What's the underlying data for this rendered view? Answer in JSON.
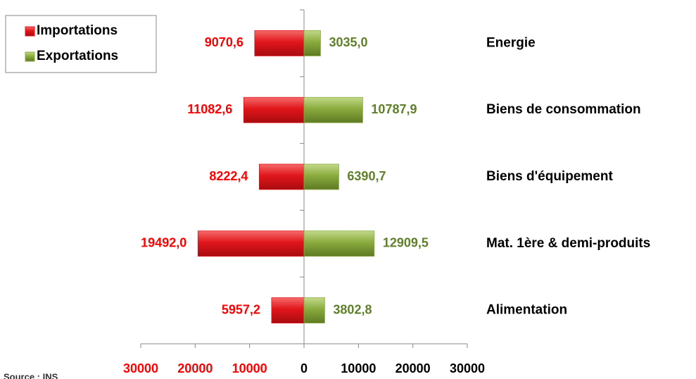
{
  "chart_data": {
    "type": "diverging-bar",
    "categories": [
      "Energie",
      "Biens de consommation",
      "Biens d'équipement",
      "Mat. 1ère & demi-produits",
      "Alimentation"
    ],
    "series": [
      {
        "name": "Importations",
        "color": "#e0161b",
        "values": [
          -9070.6,
          -11082.6,
          -8222.4,
          -19492.0,
          -5957.2
        ],
        "value_labels": [
          "9070,6",
          "11082,6",
          "8222,4",
          "19492,0",
          "5957,2"
        ],
        "label_color": "#ff0000"
      },
      {
        "name": "Exportations",
        "color": "#8aab3e",
        "values": [
          3035.0,
          10787.9,
          6390.7,
          12909.5,
          3802.8
        ],
        "value_labels": [
          "3035,0",
          "10787,9",
          "6390,7",
          "12909,5",
          "3802,8"
        ],
        "label_color": "#5f7f2a"
      }
    ],
    "xlim": [
      -30000,
      30000
    ],
    "xticks": [
      {
        "value": -30000,
        "label": "30000"
      },
      {
        "value": -20000,
        "label": "20000"
      },
      {
        "value": -10000,
        "label": "10000"
      },
      0,
      10000,
      20000,
      30000
    ],
    "tick_label_colors": [
      "#ff0000",
      "#ff0000",
      "#ff0000",
      "#000000",
      "#000000",
      "#000000",
      "#000000"
    ],
    "legend": "top-left",
    "source": "Source : INS"
  }
}
